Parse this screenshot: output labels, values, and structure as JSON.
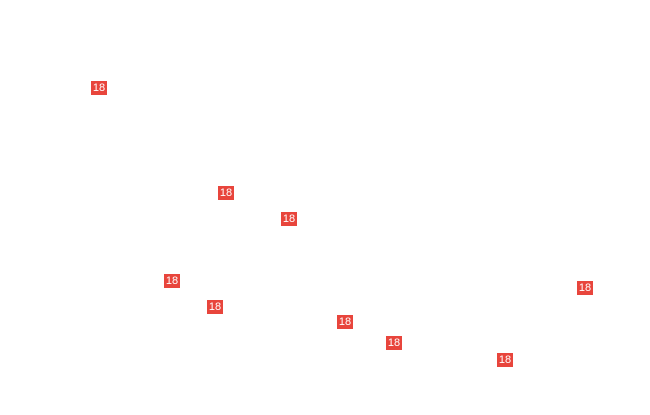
{
  "badge_color": "#e8453c",
  "markers": [
    {
      "label": "18"
    },
    {
      "label": "18"
    },
    {
      "label": "18"
    },
    {
      "label": "18"
    },
    {
      "label": "18"
    },
    {
      "label": "18"
    },
    {
      "label": "18"
    },
    {
      "label": "18"
    },
    {
      "label": "18"
    }
  ]
}
